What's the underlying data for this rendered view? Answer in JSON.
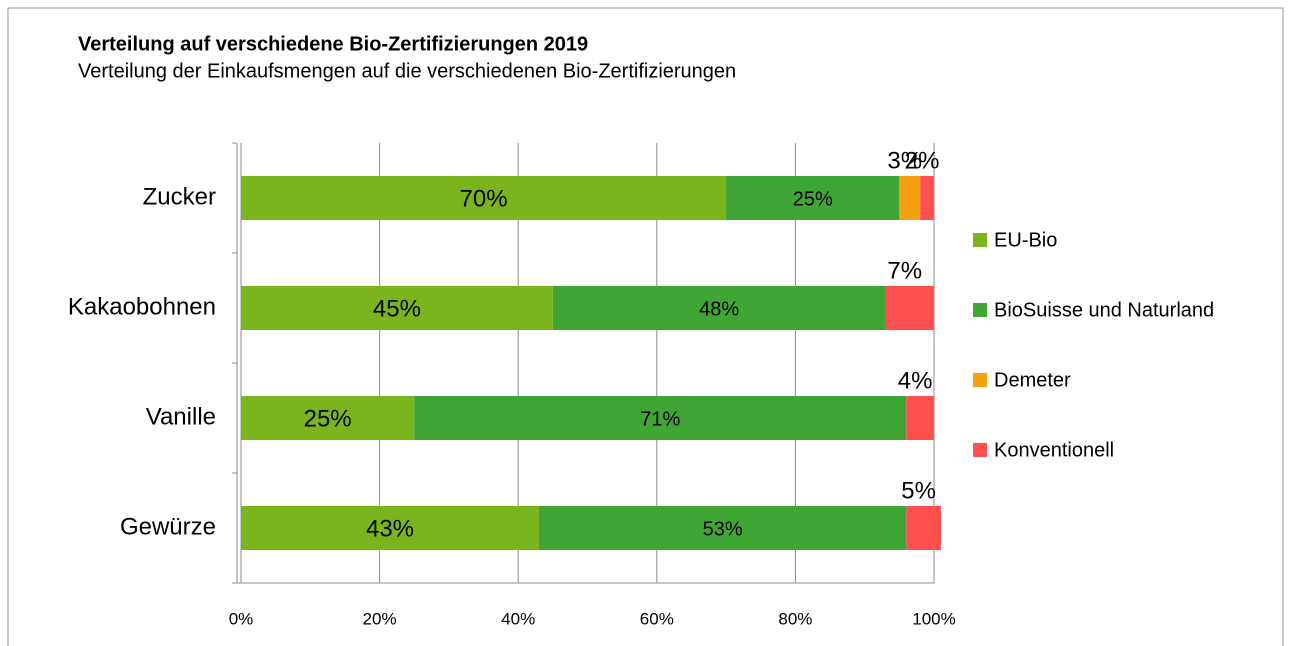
{
  "chart_data": {
    "type": "stacked-bar-horizontal",
    "title": "Verteilung auf verschiedene Bio-Zertifizierungen 2019",
    "subtitle": "Verteilung der Einkaufsmengen auf die verschiedenen  Bio-Zertifizierungen",
    "categories": [
      "Zucker",
      "Kakaobohnen",
      "Vanille",
      "Gewürze"
    ],
    "series": [
      {
        "name": "EU-Bio",
        "color": "#7ab51d",
        "values": [
          70,
          45,
          25,
          43
        ],
        "value_labels": [
          "70%",
          "45%",
          "25%",
          "43%"
        ]
      },
      {
        "name": "BioSuisse und Naturland",
        "color": "#3fa535",
        "values": [
          25,
          48,
          71,
          53
        ],
        "value_labels": [
          "25%",
          "48%",
          "71%",
          "53%"
        ]
      },
      {
        "name": "Demeter",
        "color": "#f5a00f",
        "values": [
          3,
          null,
          null,
          null
        ],
        "value_labels": [
          "3%",
          null,
          null,
          null
        ]
      },
      {
        "name": "Konventionell",
        "color": "#ff5050",
        "values": [
          2,
          7,
          4,
          5
        ],
        "value_labels": [
          "2%",
          "7%",
          "4%",
          "5%"
        ]
      }
    ],
    "xlim": [
      0,
      100
    ],
    "xticks": [
      {
        "value": 0,
        "label": "0%"
      },
      {
        "value": 20,
        "label": "20%"
      },
      {
        "value": 40,
        "label": "40%"
      },
      {
        "value": 60,
        "label": "60%"
      },
      {
        "value": 80,
        "label": "80%"
      },
      {
        "value": 100,
        "label": "100%"
      }
    ],
    "grid": true,
    "legend": "right"
  }
}
